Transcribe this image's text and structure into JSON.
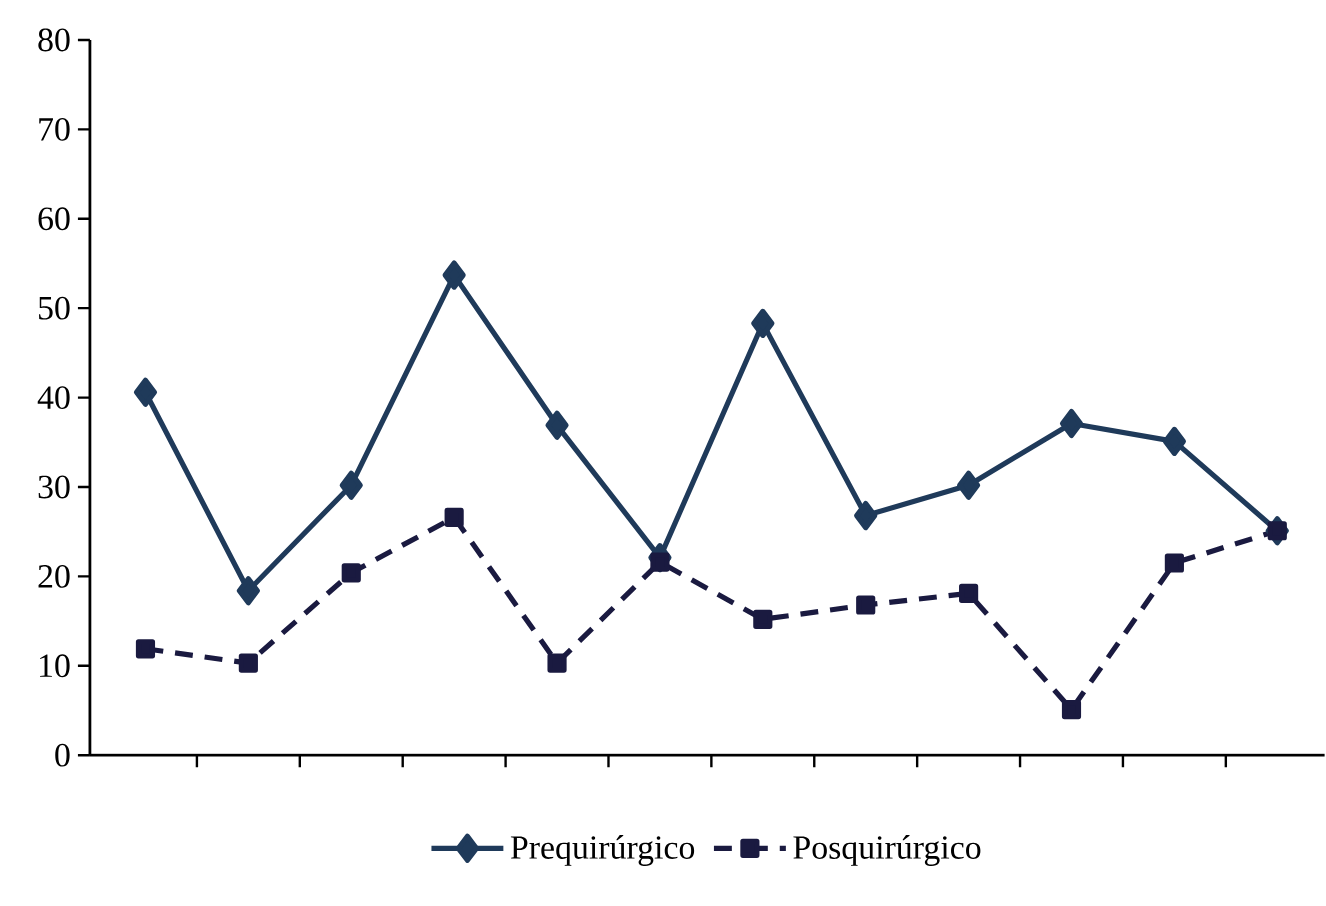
{
  "chart_data": {
    "type": "line",
    "categories": [
      null,
      null,
      null,
      null,
      null,
      null,
      null,
      null,
      null,
      null,
      null,
      null
    ],
    "series": [
      {
        "name": "Prequirúrgico",
        "color": "#1f3a5a",
        "marker": "diamond",
        "line_style": "solid",
        "values": [
          40.6,
          18.4,
          30.2,
          53.7,
          36.9,
          22.1,
          48.3,
          26.8,
          30.2,
          37.1,
          35.1,
          25.1
        ]
      },
      {
        "name": "Posquirúrgico",
        "color": "#1a1a40",
        "marker": "square",
        "line_style": "dashed",
        "values": [
          11.9,
          10.3,
          20.4,
          26.6,
          10.3,
          21.6,
          15.2,
          16.8,
          18.1,
          5.1,
          21.5,
          25.1
        ]
      }
    ],
    "ylim": [
      0,
      80
    ],
    "yticks": [
      0,
      10,
      20,
      30,
      40,
      50,
      60,
      70,
      80
    ],
    "grid": false,
    "legend": "bottom"
  }
}
